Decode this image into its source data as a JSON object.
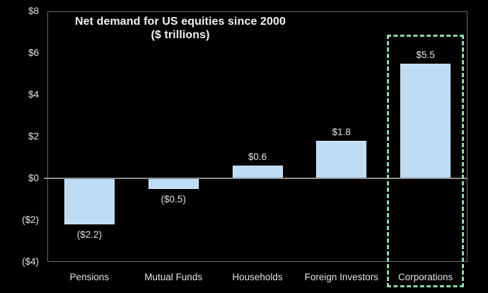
{
  "chart_data": {
    "type": "bar",
    "title": "Net demand for US equities since 2000",
    "subtitle": "($ trillions)",
    "categories": [
      "Pensions",
      "Mutual Funds",
      "Households",
      "Foreign Investors",
      "Corporations"
    ],
    "values": [
      -2.2,
      -0.5,
      0.6,
      1.8,
      5.5
    ],
    "value_labels": [
      "($2.2)",
      "($0.5)",
      "$0.6",
      "$1.8",
      "$5.5"
    ],
    "xlabel": "",
    "ylabel": "",
    "ylim": [
      -4,
      8
    ],
    "ytick_values": [
      8,
      6,
      4,
      2,
      0,
      -2,
      -4
    ],
    "ytick_labels": [
      "$8",
      "$6",
      "$4",
      "$2",
      "$0",
      "($2)",
      "($4)"
    ],
    "grid": false,
    "legend": false,
    "highlight": {
      "category": "Corporations",
      "index": 4,
      "style": "dashed-box"
    },
    "colors": {
      "background": "#000000",
      "bar_fill": "#bddbf3",
      "bar_border": "#dcebf8",
      "label_text": "#e2e2e2",
      "title_text": "#f2f2f2",
      "axis_frame": "#696969",
      "zero_line": "#8e8e8e",
      "highlight_box": "#8ed9a6"
    }
  }
}
